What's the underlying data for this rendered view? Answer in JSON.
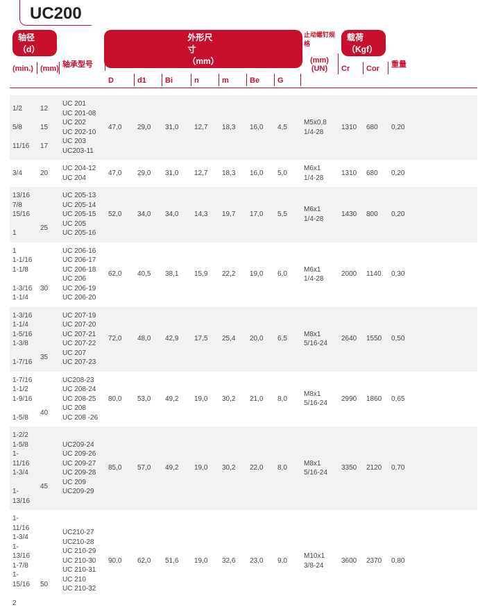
{
  "title": "UC200",
  "headers": {
    "shaft_dia": "轴径（d）",
    "min": "(min.)",
    "mm": "(mm)",
    "model": "轴承型号",
    "dims": "外形尺寸（mm）",
    "D": "D",
    "d1": "d1",
    "Bi": "Bi",
    "n": "n",
    "m": "m",
    "Be": "Be",
    "G": "G",
    "thread_top": "止动螺钉规格",
    "thread_sub": "(mm)\n(UN)",
    "load": "载荷（Kgf）",
    "Cr": "Cr",
    "Cor": "Cor",
    "weight": "重量"
  },
  "rows": [
    {
      "shade": true,
      "min": "1/2\n\n5/8\n\n11/16",
      "mm": "12\n\n15\n\n17",
      "model": "UC 201\nUC 201-08\nUC 202\nUC 202-10\nUC 203\nUC203-11",
      "D": "47,0",
      "d1": "29,0",
      "Bi": "31,0",
      "n": "12,7",
      "m": "18,3",
      "Be": "16,0",
      "G": "4,5",
      "thread": "M5x0,8\n1/4-28",
      "Cr": "1310",
      "Cor": "680",
      "weight": "0,20"
    },
    {
      "shade": false,
      "min": "3/4",
      "mm": "20",
      "model": "UC 204-12\nUC 204",
      "D": "47,0",
      "d1": "29,0",
      "Bi": "31,0",
      "n": "12,7",
      "m": "18,3",
      "Be": "16,0",
      "G": "5,0",
      "thread": "M6x1\n1/4-28",
      "Cr": "1310",
      "Cor": "680",
      "weight": "0,20"
    },
    {
      "shade": true,
      "min": "13/16\n7/8\n15/16\n\n1",
      "mm": "\n\n\n25",
      "model": "UC 205-13\nUC 205-14\nUC 205-15\nUC 205\nUC 205-16",
      "D": "52,0",
      "d1": "34,0",
      "Bi": "34,0",
      "n": "14,3",
      "m": "19,7",
      "Be": "17,0",
      "G": "5,5",
      "thread": "M6x1\n1/4-28",
      "Cr": "1430",
      "Cor": "800",
      "weight": "0,20"
    },
    {
      "shade": false,
      "min": "1\n1-1/16\n1-1/8\n\n1-3/16\n1-1/4",
      "mm": "\n\n\n30",
      "model": "UC 206-16\nUC 206-17\nUC 206-18\nUC 206\nUC 206-19\nUC 206-20",
      "D": "62,0",
      "d1": "40,5",
      "Bi": "38,1",
      "n": "15,9",
      "m": "22,2",
      "Be": "19,0",
      "G": "6,0",
      "thread": "M6x1\n1/4-28",
      "Cr": "2000",
      "Cor": "1140",
      "weight": "0,30"
    },
    {
      "shade": true,
      "min": "1-3/16\n1-1/4\n1-5/16\n1-3/8\n\n1-7/16",
      "mm": "\n\n\n\n35",
      "model": "UC 207-19\nUC 207-20\nUC 207-21\nUC 207-22\nUC 207\nUC 207-23",
      "D": "72,0",
      "d1": "48,0",
      "Bi": "42,9",
      "n": "17,5",
      "m": "25,4",
      "Be": "20,0",
      "G": "6,5",
      "thread": "M8x1\n5/16-24",
      "Cr": "2640",
      "Cor": "1550",
      "weight": "0,50"
    },
    {
      "shade": false,
      "min": "1-7/16\n1-1/2\n1-9/16\n\n1-5/8",
      "mm": "\n\n\n40",
      "model": "UC208-23\nUC 208-24\nUC 208-25\nUC 208\nUC 208 -26",
      "D": "80,0",
      "d1": "53,0",
      "Bi": "49,2",
      "n": "19,0",
      "m": "30,2",
      "Be": "21,0",
      "G": "8,0",
      "thread": "M8x1\n5/16-24",
      "Cr": "2990",
      "Cor": "1860",
      "weight": "0,65"
    },
    {
      "shade": true,
      "min": "1-2/2\n1-5/8\n1-11/16\n1-3/4\n\n1-13/16",
      "mm": "\n\n\n\n45",
      "model": "UC209-24\nUC 209-26\nUC 209-27\nUC 209-28\nUC 209\nUC209-29",
      "D": "85,0",
      "d1": "57,0",
      "Bi": "49,2",
      "n": "19,0",
      "m": "30,2",
      "Be": "22,0",
      "G": "8,0",
      "thread": "M8x1\n5/16-24",
      "Cr": "3350",
      "Cor": "2120",
      "weight": "0,70"
    },
    {
      "shade": false,
      "min": "1-11/16\n1-3/4\n1-13/16\n1-7/8\n1-15/16\n\n2",
      "mm": "\n\n\n\n\n50",
      "model": "UC210-27\nUC210-28\nUC 210-29\nUC 210-30\nUC 210-31\nUC 210\nUC 210-32",
      "D": "90,0",
      "d1": "62,0",
      "Bi": "51,6",
      "n": "19,0",
      "m": "32,6",
      "Be": "23,0",
      "G": "9,0",
      "thread": "M10x1\n3/8-24",
      "Cr": "3600",
      "Cor": "2370",
      "weight": "0,80"
    }
  ]
}
